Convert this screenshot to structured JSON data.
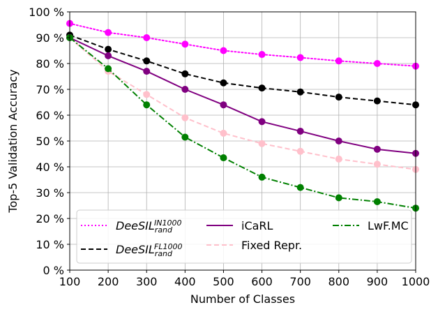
{
  "chart_data": {
    "type": "line",
    "title": "",
    "xlabel": "Number of Classes",
    "ylabel": "Top-5 Validation Accuracy",
    "xlim": [
      100,
      1000
    ],
    "ylim": [
      0,
      100
    ],
    "grid": true,
    "x": [
      100,
      200,
      300,
      400,
      500,
      600,
      700,
      800,
      900,
      1000
    ],
    "x_ticks": [
      "100",
      "200",
      "300",
      "400",
      "500",
      "600",
      "700",
      "800",
      "900",
      "1000"
    ],
    "y_ticks": [
      "0 %",
      "10 %",
      "20 %",
      "30 %",
      "40 %",
      "50 %",
      "60 %",
      "70 %",
      "80 %",
      "90 %",
      "100 %"
    ],
    "legend_position": "bottom",
    "series": [
      {
        "name": "DeeSIL IN1000 rand",
        "label_main": "DeeSIL",
        "label_sup": "IN1000",
        "label_sub": "rand",
        "color": "#ff00ff",
        "style": "dotted",
        "values": [
          95.5,
          92,
          90,
          87.5,
          85,
          83.5,
          82.3,
          81,
          80,
          79
        ]
      },
      {
        "name": "DeeSIL FL1000 rand",
        "label_main": "DeeSIL",
        "label_sup": "FL1000",
        "label_sub": "rand",
        "color": "#000000",
        "style": "dashed",
        "values": [
          91,
          85.5,
          81,
          76,
          72.5,
          70.5,
          69,
          67,
          65.5,
          64
        ]
      },
      {
        "name": "iCaRL",
        "label_main": "iCaRL",
        "color": "#800080",
        "style": "solid",
        "values": [
          90,
          83,
          77,
          70,
          64,
          57.5,
          53.8,
          50,
          46.8,
          45.2
        ]
      },
      {
        "name": "Fixed Repr.",
        "label_main": "Fixed Repr.",
        "color": "#ffc0cb",
        "style": "dashed",
        "values": [
          90,
          77,
          68,
          59,
          53,
          49,
          46,
          43,
          41,
          39
        ]
      },
      {
        "name": "LwF.MC",
        "label_main": "LwF.MC",
        "color": "#008000",
        "style": "dashdot",
        "values": [
          90,
          78,
          64,
          51.5,
          43.5,
          36,
          32,
          28,
          26.5,
          24
        ]
      }
    ]
  }
}
